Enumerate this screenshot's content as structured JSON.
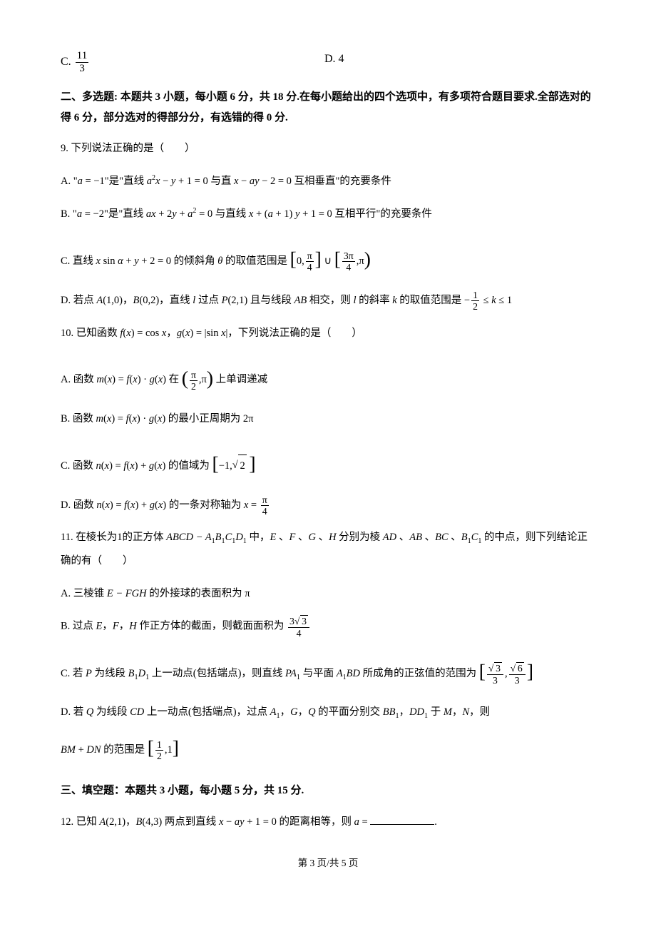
{
  "options_top": {
    "c": "C.",
    "c_frac_num": "11",
    "c_frac_den": "3",
    "d": "D. 4"
  },
  "section2": {
    "title": "二、多选题: 本题共 3 小题，每小题 6 分，共 18 分.在每小题给出的四个选项中，有多项符合题目要求.全部选对的得 6 分，部分选对的得部分分，有选错的得 0 分."
  },
  "q9": {
    "stem": "9. 下列说法正确的是（　　）",
    "a_pre": "A. \"",
    "a_mid1": " = −1\"是\"直线 ",
    "a_mid2": " − ",
    "a_mid3": " + 1 = 0 与直 ",
    "a_mid4": " − ",
    "a_mid5": " − 2 = 0 互相垂直\"的充要条件",
    "b_pre": "B. \"",
    "b_mid1": " = −2\"是\"直线 ",
    "b_mid2": " + 2",
    "b_mid3": " + ",
    "b_mid4": " = 0 与直线 ",
    "b_mid5": " + (",
    "b_mid6": " + 1) ",
    "b_mid7": " + 1 = 0 互相平行\"的充要条件",
    "c_pre": "C. 直线 ",
    "c_mid1": " sin ",
    "c_mid2": " + ",
    "c_mid3": " + 2 = 0 的倾斜角 ",
    "c_mid4": " 的取值范围是 ",
    "c_int1": "0,",
    "c_int2": ",",
    "c_pi_4_num": "π",
    "c_pi_4_den": "4",
    "c_3pi_4_num": "3π",
    "c_3pi_4_den": "4",
    "c_pi": "π",
    "d_pre": "D. 若点 ",
    "d_A": "(1,0)，",
    "d_B": "(0,2)，直线 ",
    "d_l": " 过点 ",
    "d_P": "(2,1) 且与线段 ",
    "d_AB": " 相交，则 ",
    "d_l2": " 的斜率 ",
    "d_k": " 的取值范围是 −",
    "d_frac_num": "1",
    "d_frac_den": "2",
    "d_tail": " ≤ ",
    "d_tail2": " ≤ 1"
  },
  "q10": {
    "stem_pre": "10. 已知函数 ",
    "stem_f": "(",
    "stem_x1": ") = cos ",
    "stem_mid": "，",
    "stem_g": "(",
    "stem_x2": ") = |sin ",
    "stem_tail": "|，下列说法正确的是（　　）",
    "a_pre": "A. 函数 ",
    "a_m": "(",
    "a_x": ") = ",
    "a_f": "(",
    "a_x1": ") · ",
    "a_g": "(",
    "a_x2": ") 在 ",
    "a_tail": " 上单调递减",
    "a_pi2_num": "π",
    "a_pi2_den": "2",
    "a_pi": "π",
    "b_pre": "B. 函数 ",
    "b_m": "(",
    "b_x": ") = ",
    "b_f": "(",
    "b_x1": ") · ",
    "b_g": "(",
    "b_x2": ") 的最小正周期为 2π",
    "c_pre": "C. 函数 ",
    "c_n": "(",
    "c_x": ") = ",
    "c_f": "(",
    "c_x1": ") + ",
    "c_g": "(",
    "c_x2": ") 的值域为 ",
    "c_neg1": "−1,",
    "c_sqrt2": "2",
    "d_pre": "D. 函数 ",
    "d_n": "(",
    "d_x": ") = ",
    "d_f": "(",
    "d_x1": ") + ",
    "d_g": "(",
    "d_x2": ") 的一条对称轴为 ",
    "d_eq": " = ",
    "d_pi4_num": "π",
    "d_pi4_den": "4"
  },
  "q11": {
    "stem_pre": "11. 在棱长为1的正方体 ",
    "stem_cube": " 中，",
    "stem_mid": " 、",
    "stem_mid2": " 、",
    "stem_mid3": " 、",
    "stem_mid4": " 分别为棱 ",
    "stem_AD": " 、",
    "stem_AB": " 、",
    "stem_BC": " 、",
    "stem_tail": " 的中点，则下列结论正确的有（　　）",
    "a": "A. 三棱锥 ",
    "a_mid": " 的外接球的表面积为 π",
    "b_pre": "B. 过点 ",
    "b_E": "，",
    "b_F": "，",
    "b_H": " 作正方体的截面，则截面面积为 ",
    "b_frac_num": "3",
    "b_sqrt": "3",
    "b_frac_den": "4",
    "c_pre": "C. 若 ",
    "c_P": " 为线段 ",
    "c_BD": " 上一动点(包括端点)，则直线 ",
    "c_PA": " 与平面 ",
    "c_ABD": " 所成角的正弦值的范围为 ",
    "c_s3": "3",
    "c_s6": "6",
    "c_den3": "3",
    "d_pre": "D. 若 ",
    "d_Q": " 为线段 ",
    "d_CD": " 上一动点(包括端点)，过点 ",
    "d_A1": "，",
    "d_G": "，",
    "d_Q2": " 的平面分别交 ",
    "d_BB": "，",
    "d_DD": " 于 ",
    "d_M": "，",
    "d_N": "，则 ",
    "d_sum_pre": "",
    "d_sum_mid": " + ",
    "d_sum": " 的范围是 ",
    "d_half_num": "1",
    "d_half_den": "2",
    "d_one": "1"
  },
  "section3": {
    "title": "三、填空题：本题共 3 小题，每小题 5 分，共 15 分."
  },
  "q12": {
    "pre": "12. 已知 ",
    "A": "(2,1)，",
    "B": "(4,3) 两点到直线 ",
    "mid": " − ",
    "mid2": " + 1 = 0 的距离相等，则 ",
    "eq": " = ",
    "tail": "."
  },
  "footer": "第 3 页/共 5 页"
}
